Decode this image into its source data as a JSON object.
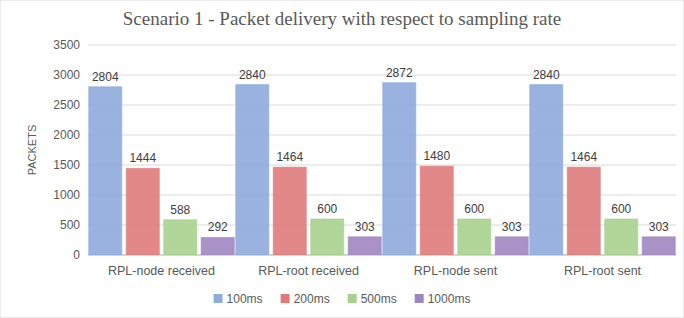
{
  "chart_data": {
    "type": "bar",
    "title": "Scenario 1 - Packet delivery with respect to sampling rate",
    "y_label": "PACKETS",
    "categories": [
      "RPL-node received",
      "RPL-root received",
      "RPL-node sent",
      "RPL-root sent"
    ],
    "series": [
      {
        "name": "100ms",
        "color": "#8faadc",
        "values": [
          2804,
          2840,
          2872,
          2840
        ]
      },
      {
        "name": "200ms",
        "color": "#e07b7b",
        "values": [
          1444,
          1464,
          1480,
          1464
        ]
      },
      {
        "name": "500ms",
        "color": "#a9d18e",
        "values": [
          588,
          600,
          600,
          600
        ]
      },
      {
        "name": "1000ms",
        "color": "#9e86c0",
        "values": [
          292,
          303,
          303,
          303
        ]
      }
    ],
    "ylim": [
      0,
      3500
    ],
    "yticks": [
      0,
      500,
      1000,
      1500,
      2000,
      2500,
      3000,
      3500
    ],
    "grid": true,
    "legend": "bottom",
    "data_labels": true
  }
}
